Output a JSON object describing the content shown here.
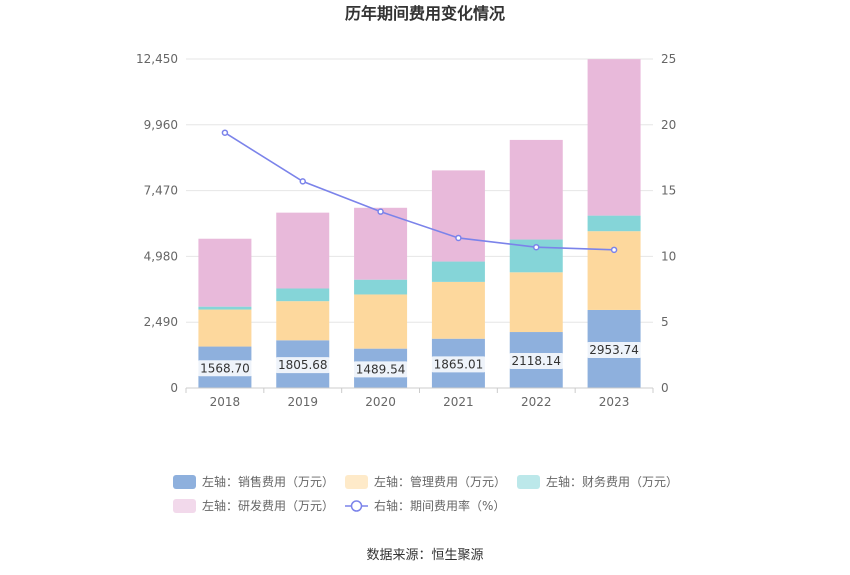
{
  "title": "历年期间费用变化情况",
  "source": "数据来源：恒生聚源",
  "chart_data": {
    "type": "bar",
    "stacked": true,
    "categories": [
      "2018",
      "2019",
      "2020",
      "2021",
      "2022",
      "2023"
    ],
    "series": [
      {
        "name": "左轴：销售费用（万元）",
        "axis": "left",
        "color": "#8eb0dd",
        "values": [
          1568.7,
          1805.68,
          1489.54,
          1865.01,
          2118.14,
          2953.74
        ],
        "labels": [
          "1568.70",
          "1805.68",
          "1489.54",
          "1865.01",
          "2118.14",
          "2953.74"
        ]
      },
      {
        "name": "左轴：管理费用（万元）",
        "axis": "left",
        "color": "#fdd89d",
        "values": [
          1400,
          1480,
          2050,
          2150,
          2260,
          2980
        ]
      },
      {
        "name": "左轴：财务费用（万元）",
        "axis": "left",
        "color": "#85d5d8",
        "values": [
          110,
          480,
          560,
          770,
          1240,
          590
        ]
      },
      {
        "name": "左轴：研发费用（万元）",
        "axis": "left",
        "color": "#e8b9da",
        "values": [
          2570,
          2870,
          2720,
          3450,
          3770,
          5920
        ]
      }
    ],
    "line": {
      "name": "右轴：期间费用率（%）",
      "axis": "right",
      "color": "#7b83ea",
      "values": [
        19.4,
        15.7,
        13.4,
        11.4,
        10.7,
        10.5
      ]
    },
    "left_axis": {
      "min": 0,
      "max": 12450,
      "ticks": [
        "0",
        "2,490",
        "4,980",
        "7,470",
        "9,960",
        "12,450"
      ]
    },
    "right_axis": {
      "min": 0,
      "max": 25,
      "ticks": [
        "0",
        "5",
        "10",
        "15",
        "20",
        "25"
      ]
    },
    "legend_position": "bottom",
    "grid": true
  }
}
